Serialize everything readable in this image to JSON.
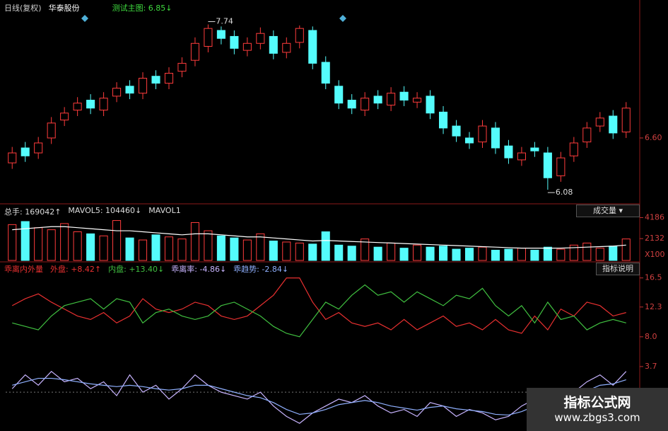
{
  "chart_data": [
    {
      "type": "candlestick",
      "title": "日线(复权)",
      "subtitle": "华泰股份",
      "legend": "测试主图: 6.85↓",
      "up_color": "#ff3c3c",
      "down_color": "#54fcfc",
      "open": [
        6.35,
        6.5,
        6.45,
        6.6,
        6.78,
        6.88,
        6.98,
        6.88,
        7.02,
        7.12,
        7.05,
        7.22,
        7.15,
        7.27,
        7.38,
        7.52,
        7.68,
        7.62,
        7.48,
        7.55,
        7.62,
        7.46,
        7.56,
        7.68,
        7.36,
        7.12,
        6.98,
        6.88,
        7.02,
        6.93,
        7.06,
        6.96,
        7.02,
        6.86,
        6.72,
        6.6,
        6.56,
        6.7,
        6.52,
        6.38,
        6.5,
        6.45,
        6.22,
        6.42,
        6.56,
        6.72,
        6.82,
        6.66
      ],
      "high": [
        6.51,
        6.56,
        6.61,
        6.81,
        6.91,
        7.01,
        7.04,
        7.06,
        7.16,
        7.18,
        7.26,
        7.28,
        7.31,
        7.41,
        7.61,
        7.74,
        7.72,
        7.68,
        7.61,
        7.71,
        7.68,
        7.61,
        7.73,
        7.72,
        7.42,
        7.18,
        7.04,
        7.06,
        7.08,
        7.11,
        7.12,
        7.06,
        7.08,
        6.92,
        6.78,
        6.66,
        6.78,
        6.76,
        6.58,
        6.51,
        6.56,
        6.51,
        6.46,
        6.61,
        6.76,
        6.86,
        6.88,
        6.96
      ],
      "low": [
        6.29,
        6.36,
        6.39,
        6.54,
        6.72,
        6.82,
        6.84,
        6.82,
        6.96,
        6.99,
        6.99,
        7.09,
        7.09,
        7.21,
        7.32,
        7.46,
        7.54,
        7.44,
        7.42,
        7.49,
        7.39,
        7.4,
        7.5,
        7.29,
        7.09,
        6.89,
        6.84,
        6.82,
        6.89,
        6.87,
        6.92,
        6.9,
        6.79,
        6.64,
        6.56,
        6.49,
        6.5,
        6.44,
        6.34,
        6.32,
        6.41,
        6.08,
        6.16,
        6.36,
        6.5,
        6.66,
        6.59,
        6.6
      ],
      "close": [
        6.45,
        6.42,
        6.55,
        6.75,
        6.85,
        6.95,
        6.9,
        7.0,
        7.1,
        7.05,
        7.2,
        7.15,
        7.25,
        7.35,
        7.55,
        7.7,
        7.6,
        7.5,
        7.55,
        7.65,
        7.45,
        7.55,
        7.7,
        7.35,
        7.15,
        6.95,
        6.9,
        7.0,
        6.95,
        7.05,
        6.98,
        7.0,
        6.85,
        6.7,
        6.62,
        6.55,
        6.72,
        6.5,
        6.4,
        6.45,
        6.47,
        6.2,
        6.4,
        6.55,
        6.7,
        6.8,
        6.65,
        6.9
      ],
      "ylim": [
        5.96,
        7.95
      ],
      "yticks": [
        {
          "value": 6.6,
          "label": "6.60"
        }
      ]
    },
    {
      "type": "bar",
      "button": "成交量",
      "unit": "X100",
      "extra_legend": "MAVOL1",
      "series": [
        {
          "name": "总手: 169042↑",
          "values": [
            3500,
            3800,
            3200,
            3000,
            3600,
            2800,
            2600,
            2400,
            3900,
            2200,
            2000,
            2500,
            2300,
            2100,
            3700,
            2900,
            2400,
            2200,
            2000,
            2600,
            1900,
            1800,
            1700,
            1600,
            2800,
            1500,
            1400,
            2100,
            1300,
            1700,
            1200,
            1500,
            1300,
            1400,
            1100,
            1200,
            1300,
            1000,
            1100,
            1200,
            1000,
            1300,
            1100,
            1500,
            1700,
            1200,
            1400,
            2100
          ]
        },
        {
          "name": "MAVOL5: 104460↓",
          "color": "#ffffff",
          "values": [
            3000,
            3100,
            3200,
            3300,
            3300,
            3200,
            3100,
            3000,
            2900,
            2900,
            2800,
            2700,
            2600,
            2500,
            2600,
            2600,
            2500,
            2400,
            2300,
            2300,
            2200,
            2100,
            2000,
            1900,
            1950,
            1900,
            1850,
            1800,
            1750,
            1700,
            1650,
            1600,
            1550,
            1500,
            1450,
            1400,
            1350,
            1300,
            1250,
            1200,
            1200,
            1200,
            1200,
            1250,
            1300,
            1350,
            1400,
            1500
          ]
        }
      ],
      "ylim": [
        0,
        4700
      ],
      "yticks": [
        4186,
        2132
      ]
    },
    {
      "type": "line",
      "title": "乖离内外量",
      "button": "指标说明",
      "series": [
        {
          "name": "外盘: +8.42↑",
          "color": "#e83030",
          "values": [
            12.5,
            13.5,
            14.2,
            13.0,
            12.0,
            11.0,
            10.5,
            11.5,
            10.0,
            11.0,
            13.5,
            12.0,
            11.5,
            12.0,
            13.0,
            12.5,
            11.0,
            10.5,
            11.0,
            12.5,
            14.0,
            16.5,
            16.5,
            13.0,
            10.5,
            11.5,
            10.0,
            9.5,
            10.0,
            9.0,
            10.5,
            9.0,
            10.0,
            11.0,
            9.5,
            10.0,
            9.0,
            10.5,
            9.0,
            8.5,
            11.0,
            9.0,
            12.0,
            11.0,
            13.0,
            12.5,
            11.0,
            11.5
          ]
        },
        {
          "name": "内盘: +13.40↓",
          "color": "#40c040",
          "values": [
            10.0,
            9.5,
            9.0,
            11.0,
            12.5,
            13.0,
            13.5,
            12.0,
            13.5,
            13.0,
            10.0,
            11.5,
            12.0,
            11.0,
            10.5,
            11.0,
            12.5,
            13.0,
            12.0,
            11.0,
            9.5,
            8.5,
            8.0,
            10.5,
            13.0,
            12.0,
            14.0,
            15.5,
            14.0,
            14.5,
            13.0,
            14.5,
            13.5,
            12.5,
            14.0,
            13.5,
            15.0,
            12.5,
            11.0,
            12.5,
            10.0,
            13.0,
            10.5,
            11.0,
            9.0,
            10.0,
            10.5,
            10.0
          ]
        },
        {
          "name": "乖离率: -4.86↓",
          "color": "#c8b4ff",
          "values": [
            0.5,
            2.5,
            1.0,
            3.0,
            1.5,
            2.0,
            0.5,
            1.5,
            -0.5,
            2.5,
            0.0,
            1.0,
            -1.0,
            0.5,
            2.5,
            1.0,
            0.0,
            -0.5,
            -1.0,
            0.0,
            -2.0,
            -3.5,
            -4.5,
            -3.0,
            -2.0,
            -1.0,
            -1.5,
            -0.5,
            -2.0,
            -3.0,
            -2.5,
            -3.5,
            -1.5,
            -2.0,
            -3.5,
            -2.5,
            -3.0,
            -4.0,
            -3.5,
            -2.0,
            -1.0,
            -3.0,
            -1.5,
            0.0,
            1.5,
            2.5,
            1.0,
            3.0
          ]
        },
        {
          "name": "乖趋势: -2.84↓",
          "color": "#8fb0ff",
          "values": [
            1.0,
            1.5,
            2.0,
            2.0,
            1.8,
            1.5,
            1.2,
            1.0,
            0.8,
            1.0,
            0.8,
            0.5,
            0.3,
            0.5,
            1.0,
            1.0,
            0.5,
            0.0,
            -0.5,
            -0.8,
            -1.5,
            -2.5,
            -3.2,
            -3.0,
            -2.5,
            -1.8,
            -1.5,
            -1.2,
            -1.5,
            -2.0,
            -2.3,
            -2.6,
            -2.2,
            -2.0,
            -2.4,
            -2.6,
            -2.8,
            -3.2,
            -3.3,
            -2.8,
            -2.0,
            -2.2,
            -1.5,
            -0.8,
            0.2,
            1.0,
            1.2,
            1.8
          ]
        }
      ],
      "ylim": [
        -5.2,
        17.8
      ],
      "yticks": [
        16.5,
        12.3,
        {
          "value": 8.0,
          "label": "8.0"
        },
        3.7
      ]
    }
  ],
  "watermark": {
    "title": "指标公式网",
    "url": "www.zbgs3.com"
  }
}
